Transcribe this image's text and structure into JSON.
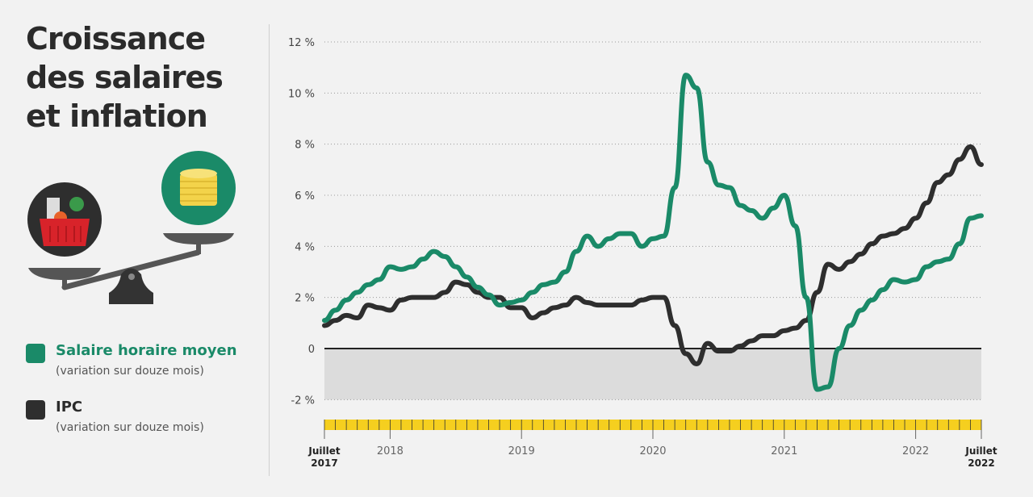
{
  "title": "Croissance des salaires et inflation",
  "colors": {
    "wage": "#1a8a68",
    "cpi": "#2e2e2e",
    "axis_band": "#f5cf1f",
    "negative_zone": "#dcdcdc"
  },
  "illustration": {
    "icons": [
      "grocery-basket-icon",
      "coin-stack-icon",
      "balance-scale-icon"
    ]
  },
  "legend": [
    {
      "name": "Salaire horaire moyen",
      "sub": "(variation sur douze mois)",
      "color": "#1a8a68"
    },
    {
      "name": "IPC",
      "sub": "(variation sur douze mois)",
      "color": "#2e2e2e"
    }
  ],
  "chart_data": {
    "type": "line",
    "x_start": "2017-07",
    "x_end": "2022-07",
    "x_frequency": "monthly",
    "x_ticks": [
      {
        "date": "2017-07",
        "label_line1": "Juillet",
        "label_line2": "2017",
        "bold": true
      },
      {
        "date": "2018-01",
        "label_line1": "2018",
        "label_line2": "",
        "bold": false
      },
      {
        "date": "2019-01",
        "label_line1": "2019",
        "label_line2": "",
        "bold": false
      },
      {
        "date": "2020-01",
        "label_line1": "2020",
        "label_line2": "",
        "bold": false
      },
      {
        "date": "2021-01",
        "label_line1": "2021",
        "label_line2": "",
        "bold": false
      },
      {
        "date": "2022-01",
        "label_line1": "2022",
        "label_line2": "",
        "bold": false
      },
      {
        "date": "2022-07",
        "label_line1": "Juillet",
        "label_line2": "2022",
        "bold": true
      }
    ],
    "ylim": [
      -2,
      12
    ],
    "y_ticks": [
      {
        "v": 12,
        "label": "12 %"
      },
      {
        "v": 10,
        "label": "10 %"
      },
      {
        "v": 8,
        "label": "8 %"
      },
      {
        "v": 6,
        "label": "6 %"
      },
      {
        "v": 4,
        "label": "4 %"
      },
      {
        "v": 2,
        "label": "2 %"
      },
      {
        "v": 0,
        "label": "0"
      },
      {
        "v": -2,
        "label": "-2 %"
      }
    ],
    "grid": "horizontal dotted",
    "series": [
      {
        "name": "Salaire horaire moyen",
        "color": "#1a8a68",
        "values": [
          1.1,
          1.5,
          1.9,
          2.2,
          2.5,
          2.7,
          3.2,
          3.1,
          3.2,
          3.5,
          3.8,
          3.6,
          3.2,
          2.8,
          2.4,
          2.1,
          1.7,
          1.8,
          1.9,
          2.2,
          2.5,
          2.6,
          3.0,
          3.8,
          4.4,
          4.0,
          4.3,
          4.5,
          4.5,
          4.0,
          4.3,
          4.4,
          6.3,
          10.7,
          10.2,
          7.3,
          6.4,
          6.3,
          5.6,
          5.4,
          5.1,
          5.5,
          6.0,
          4.8,
          2.0,
          -1.6,
          -1.5,
          0.0,
          0.9,
          1.5,
          1.9,
          2.3,
          2.7,
          2.6,
          2.7,
          3.2,
          3.4,
          3.5,
          4.1,
          5.1,
          5.2
        ]
      },
      {
        "name": "IPC",
        "color": "#2e2e2e",
        "values": [
          0.9,
          1.1,
          1.3,
          1.2,
          1.7,
          1.6,
          1.5,
          1.9,
          2.0,
          2.0,
          2.0,
          2.2,
          2.6,
          2.5,
          2.2,
          2.0,
          2.0,
          1.6,
          1.6,
          1.2,
          1.4,
          1.6,
          1.7,
          2.0,
          1.8,
          1.7,
          1.7,
          1.7,
          1.7,
          1.9,
          2.0,
          2.0,
          0.9,
          -0.2,
          -0.6,
          0.2,
          -0.1,
          -0.1,
          0.1,
          0.3,
          0.5,
          0.5,
          0.7,
          0.8,
          1.1,
          2.2,
          3.3,
          3.1,
          3.4,
          3.7,
          4.1,
          4.4,
          4.5,
          4.7,
          5.1,
          5.7,
          6.5,
          6.8,
          7.4,
          7.9,
          7.2
        ]
      }
    ]
  }
}
